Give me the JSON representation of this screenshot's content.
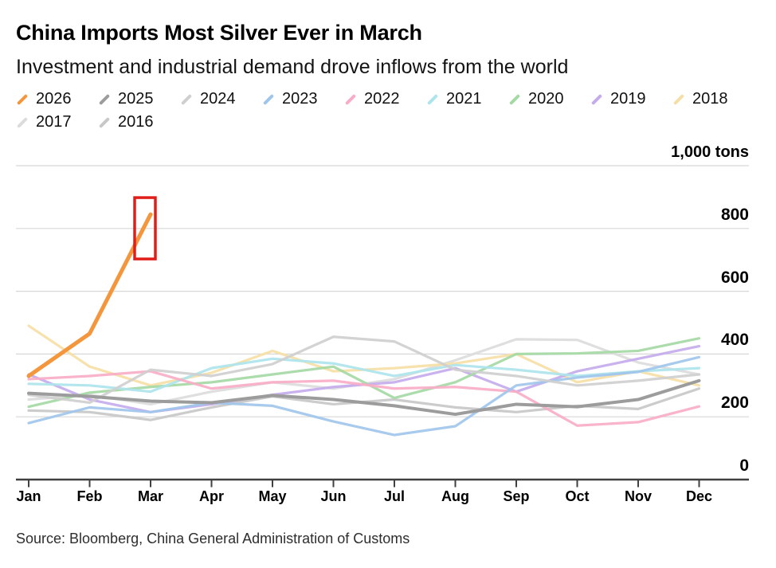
{
  "header": {
    "title": "China Imports Most Silver Ever in March",
    "subtitle": "Investment and industrial demand drove inflows from the world"
  },
  "legend": [
    {
      "year": "2026",
      "color": "#F4963C"
    },
    {
      "year": "2025",
      "color": "#9C9C9C"
    },
    {
      "year": "2024",
      "color": "#CFCFCF"
    },
    {
      "year": "2023",
      "color": "#9FC5EC"
    },
    {
      "year": "2022",
      "color": "#F8ACC7"
    },
    {
      "year": "2021",
      "color": "#AEE4EC"
    },
    {
      "year": "2020",
      "color": "#A5D9A4"
    },
    {
      "year": "2019",
      "color": "#C4ABEB"
    },
    {
      "year": "2018",
      "color": "#F6DFA6"
    },
    {
      "year": "2017",
      "color": "#DCDCDC"
    },
    {
      "year": "2016",
      "color": "#C8C8C8"
    }
  ],
  "chart_data": {
    "type": "line",
    "title": "China Imports Most Silver Ever in March",
    "subtitle": "Investment and industrial demand drove inflows from the world",
    "unit_label": "1,000 tons",
    "x": [
      "Jan",
      "Feb",
      "Mar",
      "Apr",
      "May",
      "Jun",
      "Jul",
      "Aug",
      "Sep",
      "Oct",
      "Nov",
      "Dec"
    ],
    "ylim": [
      0,
      1000
    ],
    "y_ticks": [
      0,
      200,
      400,
      600,
      800
    ],
    "gridlines": [
      200,
      400,
      600,
      800,
      1000
    ],
    "grid": "horizontal",
    "legend_position": "top",
    "series": [
      {
        "name": "2026",
        "color": "#F4963C",
        "values": [
          330,
          465,
          845
        ]
      },
      {
        "name": "2025",
        "color": "#9C9C9C",
        "values": [
          275,
          265,
          250,
          245,
          268,
          255,
          235,
          208,
          240,
          232,
          255,
          315
        ]
      },
      {
        "name": "2024",
        "color": "#CFCFCF",
        "values": [
          270,
          245,
          350,
          330,
          368,
          455,
          440,
          350,
          330,
          300,
          315,
          335
        ]
      },
      {
        "name": "2023",
        "color": "#9FC5EC",
        "values": [
          180,
          230,
          215,
          245,
          235,
          185,
          142,
          170,
          300,
          325,
          343,
          390
        ]
      },
      {
        "name": "2022",
        "color": "#F8ACC7",
        "values": [
          320,
          330,
          345,
          290,
          310,
          315,
          290,
          295,
          280,
          172,
          183,
          233
        ]
      },
      {
        "name": "2021",
        "color": "#AEE4EC",
        "values": [
          305,
          300,
          280,
          355,
          385,
          370,
          330,
          365,
          350,
          330,
          345,
          355
        ]
      },
      {
        "name": "2020",
        "color": "#A5D9A4",
        "values": [
          232,
          277,
          295,
          310,
          335,
          360,
          260,
          310,
          400,
          402,
          410,
          450
        ]
      },
      {
        "name": "2019",
        "color": "#C4ABEB",
        "values": [
          335,
          255,
          215,
          240,
          270,
          295,
          310,
          355,
          280,
          345,
          385,
          425
        ]
      },
      {
        "name": "2018",
        "color": "#F6DFA6",
        "values": [
          490,
          360,
          300,
          340,
          410,
          345,
          355,
          370,
          400,
          310,
          345,
          300
        ]
      },
      {
        "name": "2017",
        "color": "#DCDCDC",
        "values": [
          255,
          270,
          240,
          280,
          310,
          290,
          320,
          380,
          447,
          445,
          373,
          335
        ]
      },
      {
        "name": "2016",
        "color": "#C8C8C8",
        "values": [
          220,
          215,
          190,
          230,
          265,
          240,
          255,
          230,
          215,
          235,
          225,
          290
        ]
      }
    ],
    "annotation": {
      "type": "highlight-box",
      "series": "2026",
      "month": "Mar",
      "color": "#E01D18"
    }
  },
  "footer": {
    "source": "Source: Bloomberg, China General Administration of Customs"
  }
}
